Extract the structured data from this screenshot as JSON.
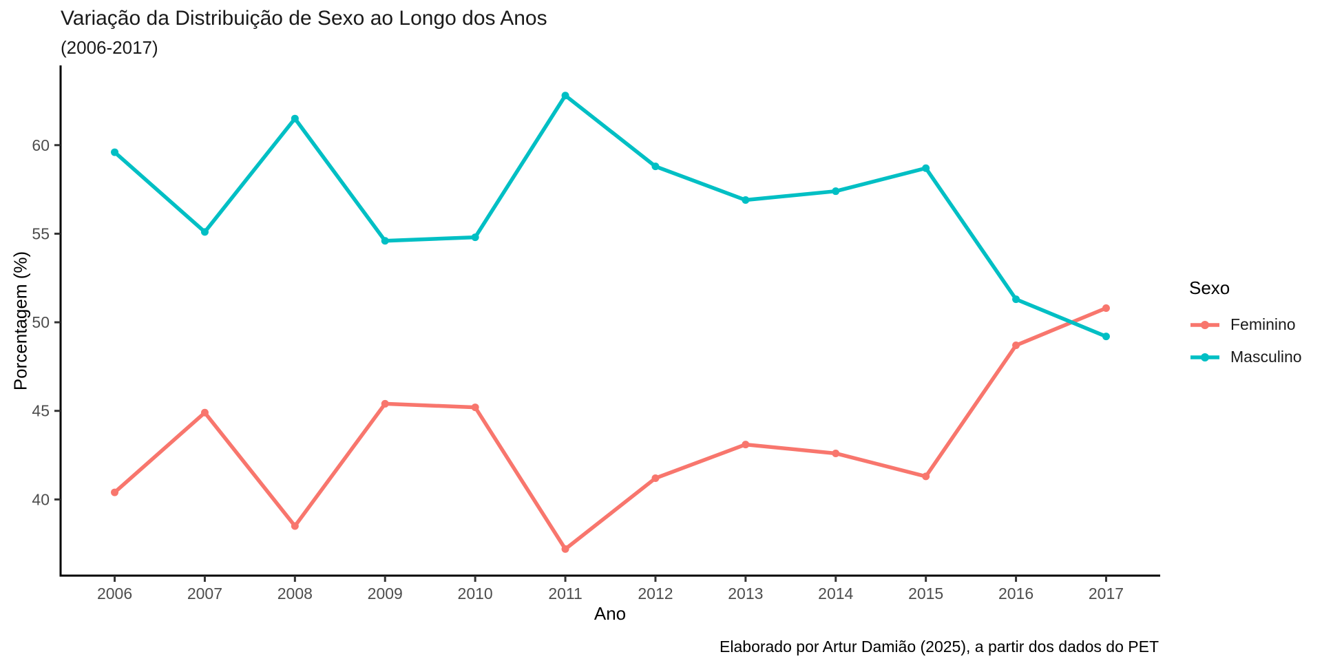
{
  "page": {
    "background": "#ffffff"
  },
  "chart_data": {
    "type": "line",
    "title": "Variação da Distribuição de Sexo ao Longo dos Anos",
    "subtitle": "(2006-2017)",
    "xlabel": "Ano",
    "ylabel": "Porcentagem (%)",
    "caption": "Elaborado por Artur Damião (2025), a partir dos dados do PET",
    "legend": {
      "title": "Sexo",
      "position": "right"
    },
    "x": [
      2006,
      2007,
      2008,
      2009,
      2010,
      2011,
      2012,
      2013,
      2014,
      2015,
      2016,
      2017
    ],
    "series": [
      {
        "name": "Feminino",
        "color": "#F8766D",
        "values": [
          40.4,
          44.9,
          38.5,
          45.4,
          45.2,
          37.2,
          41.2,
          43.1,
          42.6,
          41.3,
          48.7,
          50.8
        ]
      },
      {
        "name": "Masculino",
        "color": "#00BFC4",
        "values": [
          59.6,
          55.1,
          61.5,
          54.6,
          54.8,
          62.8,
          58.8,
          56.9,
          57.4,
          58.7,
          51.3,
          49.2
        ]
      }
    ],
    "y_ticks": [
      40,
      45,
      50,
      55,
      60
    ],
    "x_domain": [
      2005.4,
      2017.6
    ],
    "y_domain": [
      35.7,
      64.5
    ],
    "grid": false,
    "style": {
      "axis_color": "#000000",
      "tick_color": "#333333",
      "tick_label_color": "#4d4d4d",
      "line_width": 5.5,
      "point_radius": 5.5
    }
  }
}
